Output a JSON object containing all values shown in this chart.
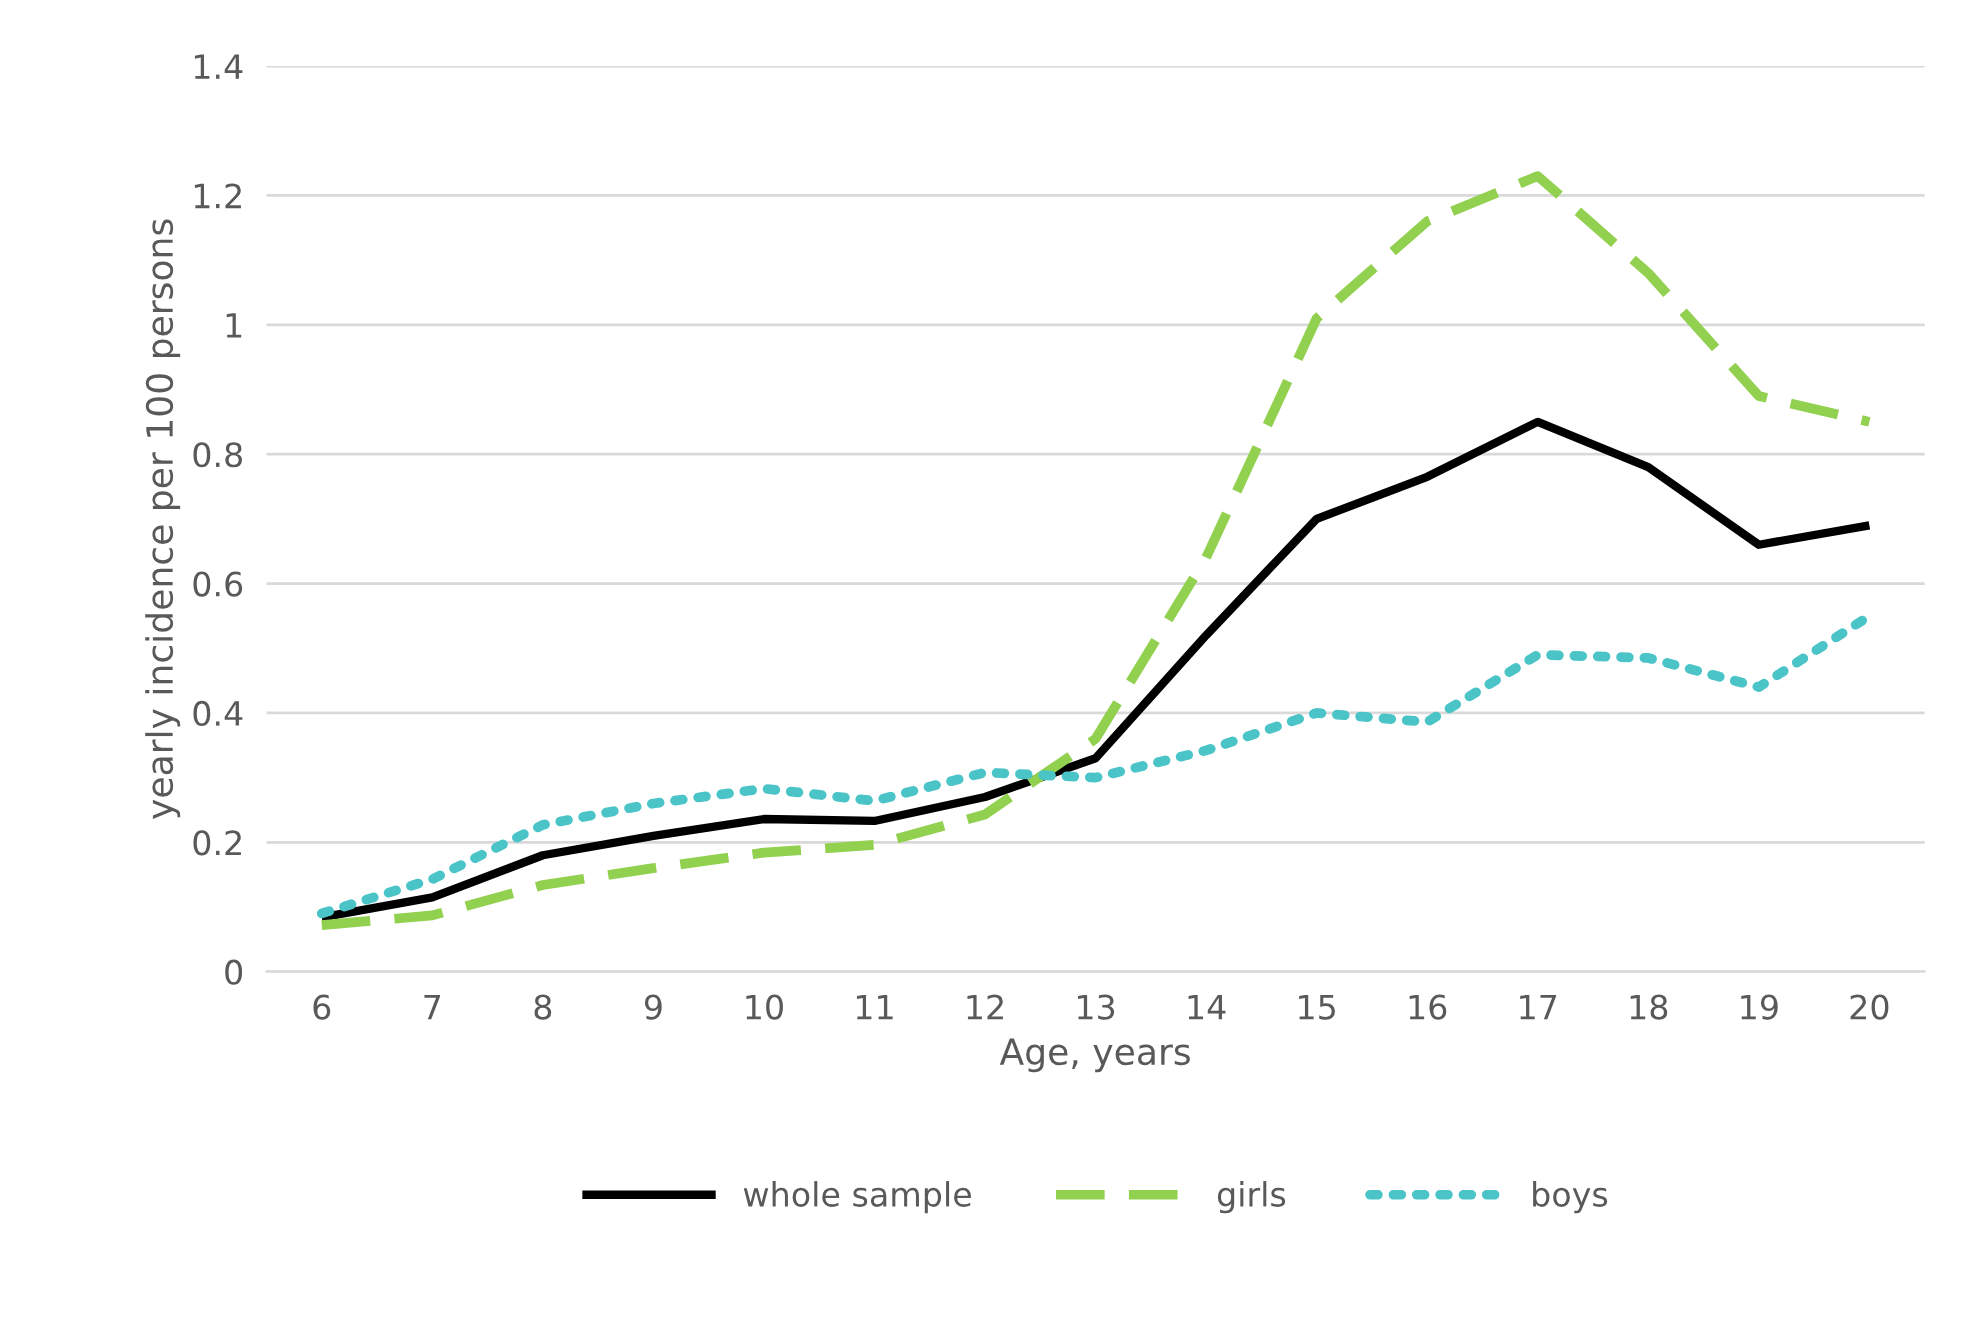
{
  "chart_data": {
    "type": "line",
    "xlabel": "Age, years",
    "ylabel": "yearly incidence per 100 persons",
    "categories": [
      "6",
      "7",
      "8",
      "9",
      "10",
      "11",
      "12",
      "13",
      "14",
      "15",
      "16",
      "17",
      "18",
      "19",
      "20"
    ],
    "ylim": [
      0,
      1.4
    ],
    "yticks": [
      0,
      0.2,
      0.4,
      0.6,
      0.8,
      1,
      1.2,
      1.4
    ],
    "grid": "y",
    "legend": "bottom",
    "marker": "none",
    "series": [
      {
        "name": "whole sample",
        "color": "#000000",
        "line_style": "solid",
        "values": [
          0.084,
          0.115,
          0.18,
          0.21,
          0.236,
          0.233,
          0.27,
          0.33,
          0.52,
          0.7,
          0.765,
          0.85,
          0.78,
          0.66,
          0.69
        ]
      },
      {
        "name": "girls",
        "color": "#92d050",
        "line_style": "dashed",
        "values": [
          0.072,
          0.087,
          0.134,
          0.16,
          0.184,
          0.196,
          0.243,
          0.36,
          0.64,
          1.01,
          1.16,
          1.23,
          1.08,
          0.89,
          0.85
        ]
      },
      {
        "name": "boys",
        "color": "#4bc4c8",
        "line_style": "dotted",
        "values": [
          0.09,
          0.143,
          0.227,
          0.26,
          0.283,
          0.264,
          0.308,
          0.3,
          0.342,
          0.4,
          0.386,
          0.49,
          0.485,
          0.44,
          0.55
        ]
      }
    ]
  }
}
